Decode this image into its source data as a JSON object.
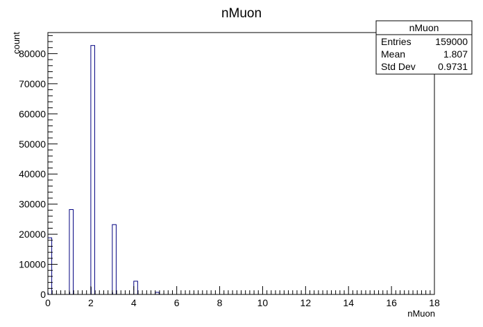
{
  "chart_data": {
    "type": "bar",
    "title": "nMuon",
    "xlabel": "nMuon",
    "ylabel": "count",
    "xlim": [
      0,
      18
    ],
    "ylim": [
      0,
      87000
    ],
    "x_ticks": [
      "0",
      "2",
      "4",
      "6",
      "8",
      "10",
      "12",
      "14",
      "16",
      "18"
    ],
    "y_ticks": [
      "0",
      "10000",
      "20000",
      "30000",
      "40000",
      "50000",
      "60000",
      "70000",
      "80000"
    ],
    "bin_width": 0.18,
    "bins": [
      {
        "x": 0,
        "value": 18800
      },
      {
        "x": 1,
        "value": 28200
      },
      {
        "x": 2,
        "value": 82700
      },
      {
        "x": 3,
        "value": 23200
      },
      {
        "x": 4,
        "value": 4400
      },
      {
        "x": 5,
        "value": 700
      }
    ],
    "colors": {
      "bar": "#000080",
      "axis": "#000000"
    },
    "grid": false,
    "legend": "none"
  },
  "stats_box": {
    "title": "nMuon",
    "rows": [
      {
        "label": "Entries",
        "value": "159000"
      },
      {
        "label": "Mean",
        "value": "1.807"
      },
      {
        "label": "Std Dev",
        "value": "0.9731"
      }
    ]
  }
}
